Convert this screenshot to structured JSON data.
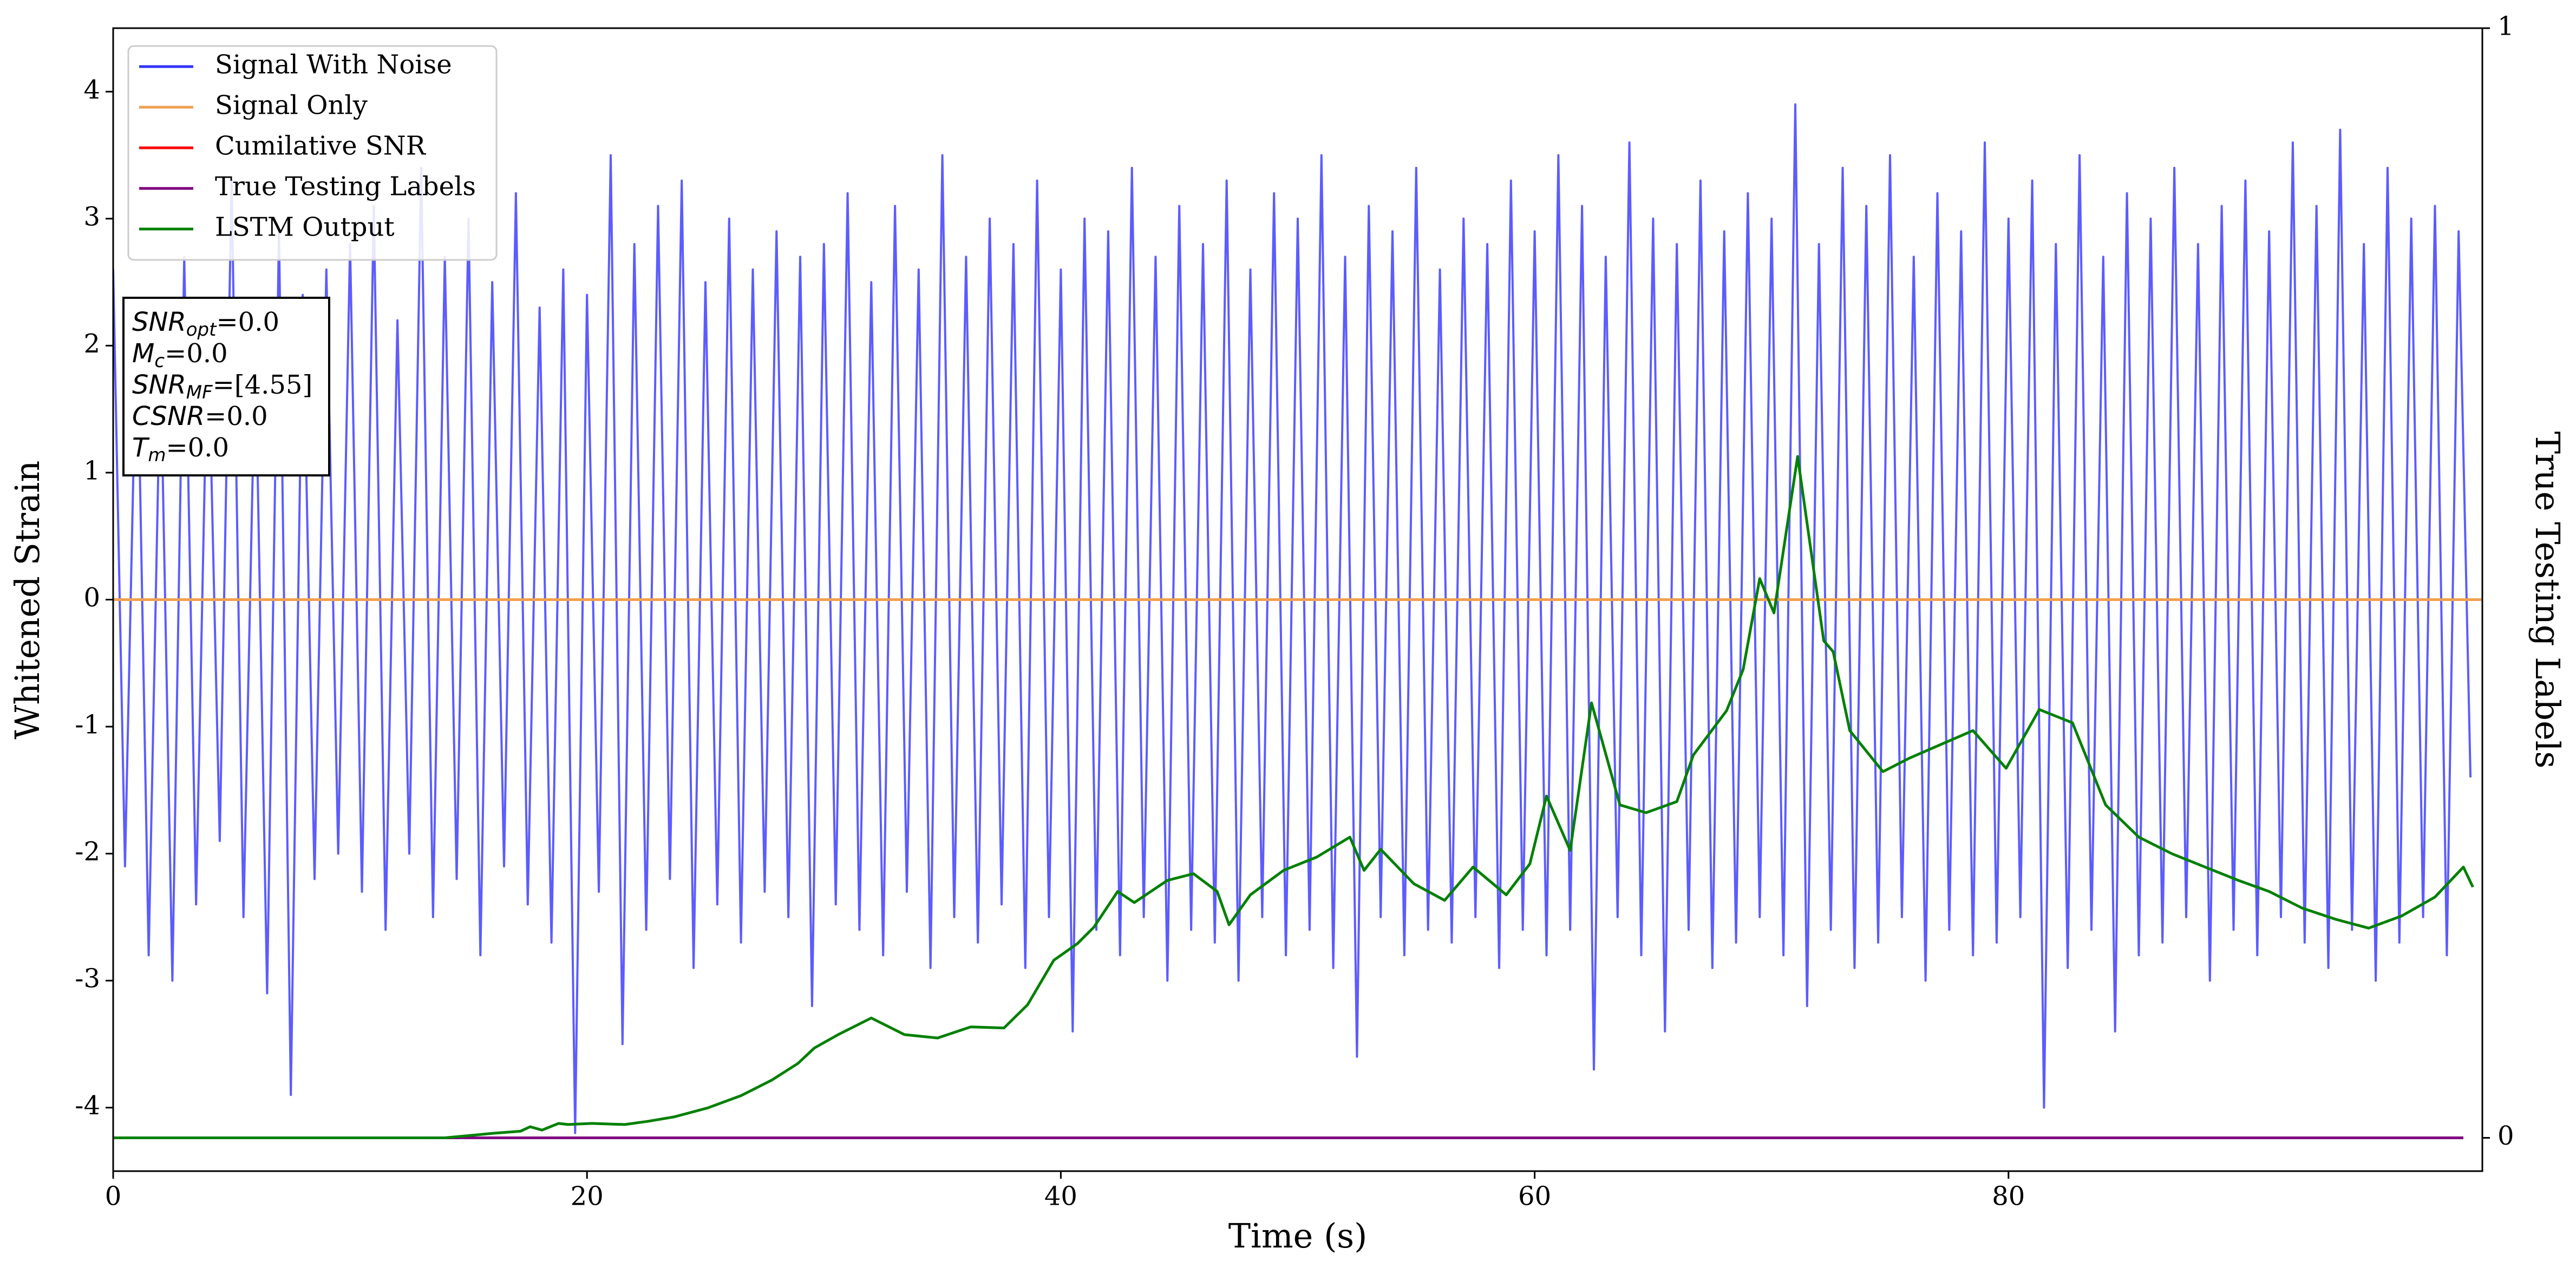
{
  "chart_data": {
    "type": "line",
    "xlabel": "Time (s)",
    "ylabel": "Whitened Strain",
    "y2label": "True Testing Labels",
    "xlim": [
      0,
      100
    ],
    "xticks": [
      0,
      20,
      40,
      60,
      80
    ],
    "ylim": [
      -4.5,
      4.5
    ],
    "yticks": [
      -4,
      -3,
      -2,
      -1,
      0,
      1,
      2,
      3,
      4
    ],
    "y2lim": [
      -0.03,
      1
    ],
    "y2ticks": [
      0,
      1
    ],
    "grid": false,
    "legend": "upper left",
    "annotation": [
      {
        "text": "SNR",
        "sub": "opt",
        "rest": "=0.0"
      },
      {
        "text": "M",
        "sub": "c",
        "rest": "=0.0"
      },
      {
        "text": "SNR",
        "sub": "MF",
        "rest": "=[4.55]"
      },
      {
        "text": "CSNR",
        "rest": "=0.0"
      },
      {
        "text": "T",
        "sub": "m",
        "rest": "=0.0"
      }
    ],
    "series": [
      {
        "name": "Signal With Noise",
        "color": "#3333ff",
        "axis": "y",
        "x": [
          0,
          0.5,
          1,
          1.5,
          2,
          2.5,
          3,
          3.5,
          4,
          4.5,
          5,
          5.5,
          6,
          6.5,
          7,
          7.5,
          8,
          8.5,
          9,
          9.5,
          10,
          10.5,
          11,
          11.5,
          12,
          12.5,
          13,
          13.5,
          14,
          14.5,
          15,
          15.5,
          16,
          16.5,
          17,
          17.5,
          18,
          18.5,
          19,
          19.5,
          20,
          20.5,
          21,
          21.5,
          22,
          22.5,
          23,
          23.5,
          24,
          24.5,
          25,
          25.5,
          26,
          26.5,
          27,
          27.5,
          28,
          28.5,
          29,
          29.5,
          30,
          30.5,
          31,
          31.5,
          32,
          32.5,
          33,
          33.5,
          34,
          34.5,
          35,
          35.5,
          36,
          36.5,
          37,
          37.5,
          38,
          38.5,
          39,
          39.5,
          40,
          40.5,
          41,
          41.5,
          42,
          42.5,
          43,
          43.5,
          44,
          44.5,
          45,
          45.5,
          46,
          46.5,
          47,
          47.5,
          48,
          48.5,
          49,
          49.5,
          50,
          50.5,
          51,
          51.5,
          52,
          52.5,
          53,
          53.5,
          54,
          54.5,
          55,
          55.5,
          56,
          56.5,
          57,
          57.5,
          58,
          58.5,
          59,
          59.5,
          60,
          60.5,
          61,
          61.5,
          62,
          62.5,
          63,
          63.5,
          64,
          64.5,
          65,
          65.5,
          66,
          66.5,
          67,
          67.5,
          68,
          68.5,
          69,
          69.5,
          70,
          70.5,
          71,
          71.5,
          72,
          72.5,
          73,
          73.5,
          74,
          74.5,
          75,
          75.5,
          76,
          76.5,
          77,
          77.5,
          78,
          78.5,
          79,
          79.5,
          80,
          80.5,
          81,
          81.5,
          82,
          82.5,
          83,
          83.5,
          84,
          84.5,
          85,
          85.5,
          86,
          86.5,
          87,
          87.5,
          88,
          88.5,
          89,
          89.5,
          90,
          90.5,
          91,
          91.5,
          92,
          92.5,
          93,
          93.5,
          94,
          94.5,
          95,
          95.5,
          96,
          96.5,
          97,
          97.5,
          98,
          98.5,
          99,
          99.5
        ],
        "values": [
          2.6,
          -2.1,
          2.3,
          -2.8,
          1.9,
          -3.0,
          2.7,
          -2.4,
          2.2,
          -1.9,
          3.3,
          -2.5,
          2.0,
          -3.1,
          2.9,
          -3.9,
          2.4,
          -2.2,
          2.6,
          -2.0,
          2.8,
          -2.3,
          3.1,
          -2.6,
          2.2,
          -2.0,
          3.4,
          -2.5,
          2.7,
          -2.2,
          3.0,
          -2.8,
          2.5,
          -2.1,
          3.2,
          -2.4,
          2.3,
          -2.7,
          2.6,
          -4.2,
          2.4,
          -2.3,
          3.5,
          -3.5,
          2.8,
          -2.6,
          3.1,
          -2.2,
          3.3,
          -2.9,
          2.5,
          -2.4,
          3.0,
          -2.7,
          2.6,
          -2.3,
          2.9,
          -2.5,
          2.7,
          -3.2,
          2.8,
          -2.4,
          3.2,
          -2.6,
          2.5,
          -2.8,
          3.1,
          -2.3,
          2.6,
          -2.9,
          3.5,
          -2.5,
          2.7,
          -2.7,
          3.0,
          -2.4,
          2.8,
          -2.9,
          3.3,
          -2.5,
          2.6,
          -3.4,
          3.0,
          -2.6,
          2.9,
          -2.8,
          3.4,
          -2.5,
          2.7,
          -3.0,
          3.1,
          -2.6,
          2.8,
          -2.7,
          3.3,
          -3.0,
          2.6,
          -2.5,
          3.2,
          -2.8,
          3.0,
          -2.6,
          3.5,
          -2.9,
          2.7,
          -3.6,
          3.1,
          -2.5,
          2.9,
          -2.8,
          3.4,
          -2.6,
          2.6,
          -2.7,
          3.0,
          -2.5,
          2.8,
          -2.9,
          3.3,
          -2.6,
          2.9,
          -2.8,
          3.5,
          -2.6,
          3.1,
          -3.7,
          2.7,
          -2.5,
          3.6,
          -2.8,
          3.0,
          -3.4,
          2.8,
          -2.6,
          3.3,
          -2.9,
          2.9,
          -2.7,
          3.2,
          -2.5,
          3.0,
          -2.8,
          3.9,
          -3.2,
          2.8,
          -2.6,
          3.4,
          -2.9,
          3.1,
          -2.7,
          3.5,
          -2.5,
          2.7,
          -3.0,
          3.2,
          -2.6,
          2.9,
          -2.8,
          3.6,
          -2.7,
          3.0,
          -2.5,
          3.3,
          -4.0,
          2.8,
          -2.9,
          3.5,
          -2.6,
          2.7,
          -3.4,
          3.2,
          -2.8,
          3.0,
          -2.7,
          3.4,
          -2.5,
          2.8,
          -3.0,
          3.1,
          -2.6,
          3.3,
          -2.8,
          2.9,
          -2.5,
          3.6,
          -2.7,
          3.1,
          -2.9,
          3.7,
          -2.6,
          2.8,
          -3.0,
          3.4,
          -2.7,
          3.0,
          -2.5,
          3.1,
          -2.8,
          2.9,
          -1.4
        ]
      },
      {
        "name": "Signal Only",
        "color": "#f0a050",
        "axis": "y",
        "x": [
          0,
          100
        ],
        "values": [
          0,
          0
        ]
      },
      {
        "name": "Cumilative SNR",
        "color": "red",
        "axis": "y2",
        "x": [
          0,
          99.2
        ],
        "values": [
          0,
          0
        ]
      },
      {
        "name": "True Testing Labels",
        "color": "purple",
        "axis": "y2",
        "x": [
          0,
          99.2
        ],
        "values": [
          0,
          0
        ]
      },
      {
        "name": "LSTM Output",
        "color": "green",
        "axis": "y2",
        "x": [
          0,
          14,
          16,
          17.2,
          17.6,
          18.1,
          18.8,
          19.2,
          20.2,
          21.6,
          22.6,
          23.7,
          25.1,
          26.5,
          27.8,
          28.9,
          29.6,
          30.6,
          32.0,
          33.4,
          34.8,
          36.2,
          37.6,
          38.6,
          39.7,
          40.7,
          41.4,
          42.4,
          43.1,
          44.5,
          45.6,
          46.6,
          47.1,
          48.0,
          49.4,
          50.8,
          52.2,
          52.8,
          53.5,
          54.9,
          56.2,
          57.4,
          58.8,
          59.8,
          60.5,
          61.5,
          62.4,
          63.6,
          64.7,
          66.0,
          66.7,
          68.1,
          68.8,
          69.5,
          70.1,
          71.1,
          72.2,
          72.6,
          73.3,
          74.7,
          75.8,
          77.2,
          78.5,
          79.9,
          81.3,
          82.7,
          84.1,
          85.5,
          86.9,
          88.3,
          89.7,
          91.0,
          92.4,
          93.8,
          95.2,
          96.6,
          98.0,
          99.2,
          99.6
        ],
        "values": [
          0,
          0,
          0.004,
          0.006,
          0.01,
          0.007,
          0.013,
          0.012,
          0.013,
          0.012,
          0.015,
          0.019,
          0.027,
          0.038,
          0.052,
          0.067,
          0.081,
          0.093,
          0.108,
          0.093,
          0.09,
          0.1,
          0.099,
          0.12,
          0.16,
          0.175,
          0.19,
          0.222,
          0.212,
          0.232,
          0.238,
          0.222,
          0.192,
          0.219,
          0.241,
          0.253,
          0.271,
          0.241,
          0.26,
          0.229,
          0.214,
          0.244,
          0.219,
          0.247,
          0.308,
          0.259,
          0.392,
          0.3,
          0.293,
          0.303,
          0.345,
          0.385,
          0.422,
          0.504,
          0.473,
          0.614,
          0.448,
          0.438,
          0.367,
          0.33,
          0.342,
          0.355,
          0.367,
          0.333,
          0.386,
          0.374,
          0.3,
          0.271,
          0.256,
          0.244,
          0.232,
          0.222,
          0.207,
          0.197,
          0.189,
          0.2,
          0.217,
          0.244,
          0.226
        ]
      }
    ]
  }
}
